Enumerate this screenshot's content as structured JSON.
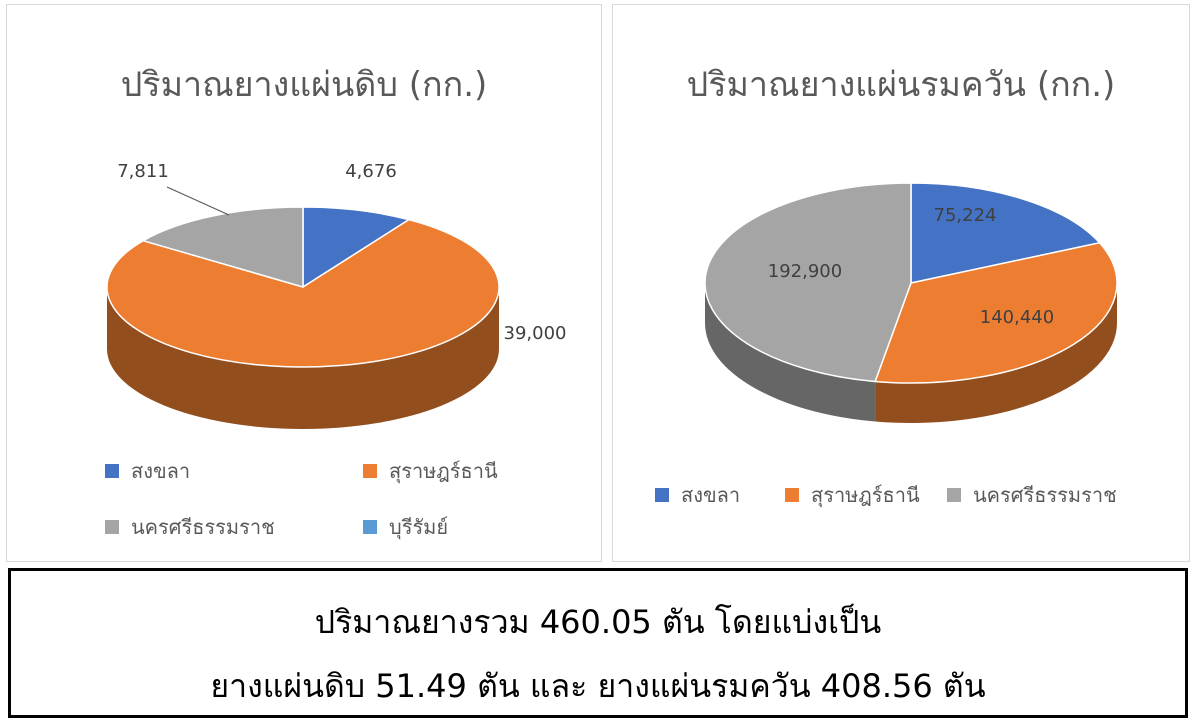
{
  "colors": {
    "songkhla": "#4472c4",
    "surat": "#ed7d31",
    "nakhon": "#a5a5a5",
    "buriram": "#5b9bd5"
  },
  "chart_data": [
    {
      "type": "pie",
      "title": "ปริมาณยางแผ่นดิบ (กก.)",
      "slices": [
        {
          "label": "สงขลา",
          "value": 4676,
          "display": "4,676",
          "color": "#4472c4"
        },
        {
          "label": "สุราษฎร์ธานี",
          "value": 39000,
          "display": "39,000",
          "color": "#ed7d31"
        },
        {
          "label": "นครศรีธรรมราช",
          "value": 7811,
          "display": "7,811",
          "color": "#a5a5a5"
        },
        {
          "label": "บุรีรัมย์",
          "value": 0,
          "display": "",
          "color": "#5b9bd5"
        }
      ],
      "legend": [
        "สงขลา",
        "สุราษฎร์ธานี",
        "นครศรีธรรมราช",
        "บุรีรัมย์"
      ],
      "legend_position": "bottom"
    },
    {
      "type": "pie",
      "title": "ปริมาณยางแผ่นรมควัน (กก.)",
      "slices": [
        {
          "label": "สงขลา",
          "value": 75224,
          "display": "75,224",
          "color": "#4472c4"
        },
        {
          "label": "สุราษฎร์ธานี",
          "value": 140440,
          "display": "140,440",
          "color": "#ed7d31"
        },
        {
          "label": "นครศรีธรรมราช",
          "value": 192900,
          "display": "192,900",
          "color": "#a5a5a5"
        }
      ],
      "legend": [
        "สงขลา",
        "สุราษฎร์ธานี",
        "นครศรีธรรมราช"
      ],
      "legend_position": "bottom"
    }
  ],
  "summary": {
    "line1": "ปริมาณยางรวม 460.05 ตัน โดยแบ่งเป็น",
    "line2": "ยางแผ่นดิบ 51.49 ตัน และ ยางแผ่นรมควัน 408.56 ตัน"
  }
}
